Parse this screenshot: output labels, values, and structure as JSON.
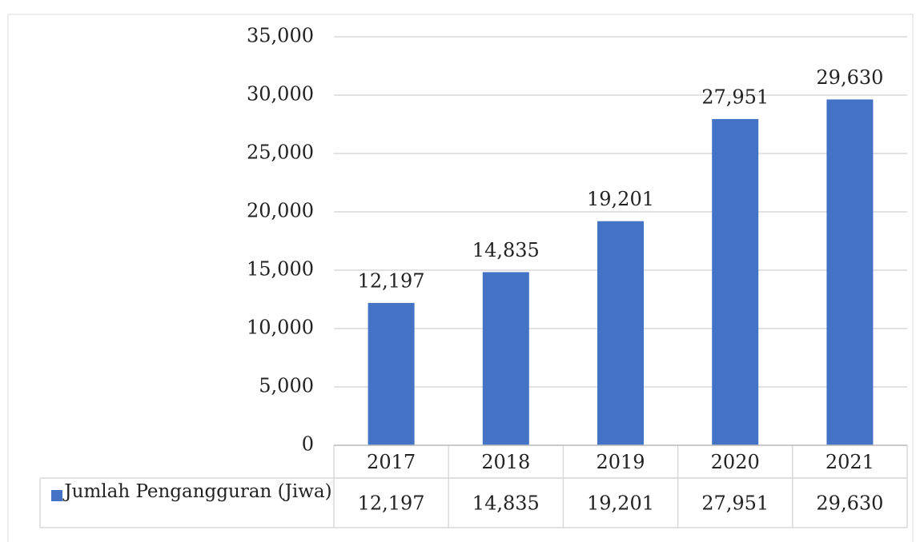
{
  "chart_data": {
    "type": "bar",
    "categories": [
      "2017",
      "2018",
      "2019",
      "2020",
      "2021"
    ],
    "series": [
      {
        "name": "Jumlah Pengangguran (Jiwa)",
        "color": "#4472c4",
        "values": [
          12197,
          14835,
          19201,
          27951,
          29630
        ],
        "value_labels": [
          "12,197",
          "14,835",
          "19,201",
          "27,951",
          "29,630"
        ]
      }
    ],
    "ylim": [
      0,
      35000
    ],
    "yticks": [
      0,
      {
        "value": 5000,
        "label": "5,000"
      },
      {
        "value": 10000,
        "label": "10,000"
      },
      {
        "value": 15000,
        "label": "15,000"
      },
      {
        "value": 20000,
        "label": "20,000"
      },
      {
        "value": 25000,
        "label": "25,000"
      },
      {
        "value": 30000,
        "label": "30,000"
      },
      {
        "value": 35000,
        "label": "35,000"
      }
    ],
    "grid": true,
    "legend": "data-table"
  }
}
